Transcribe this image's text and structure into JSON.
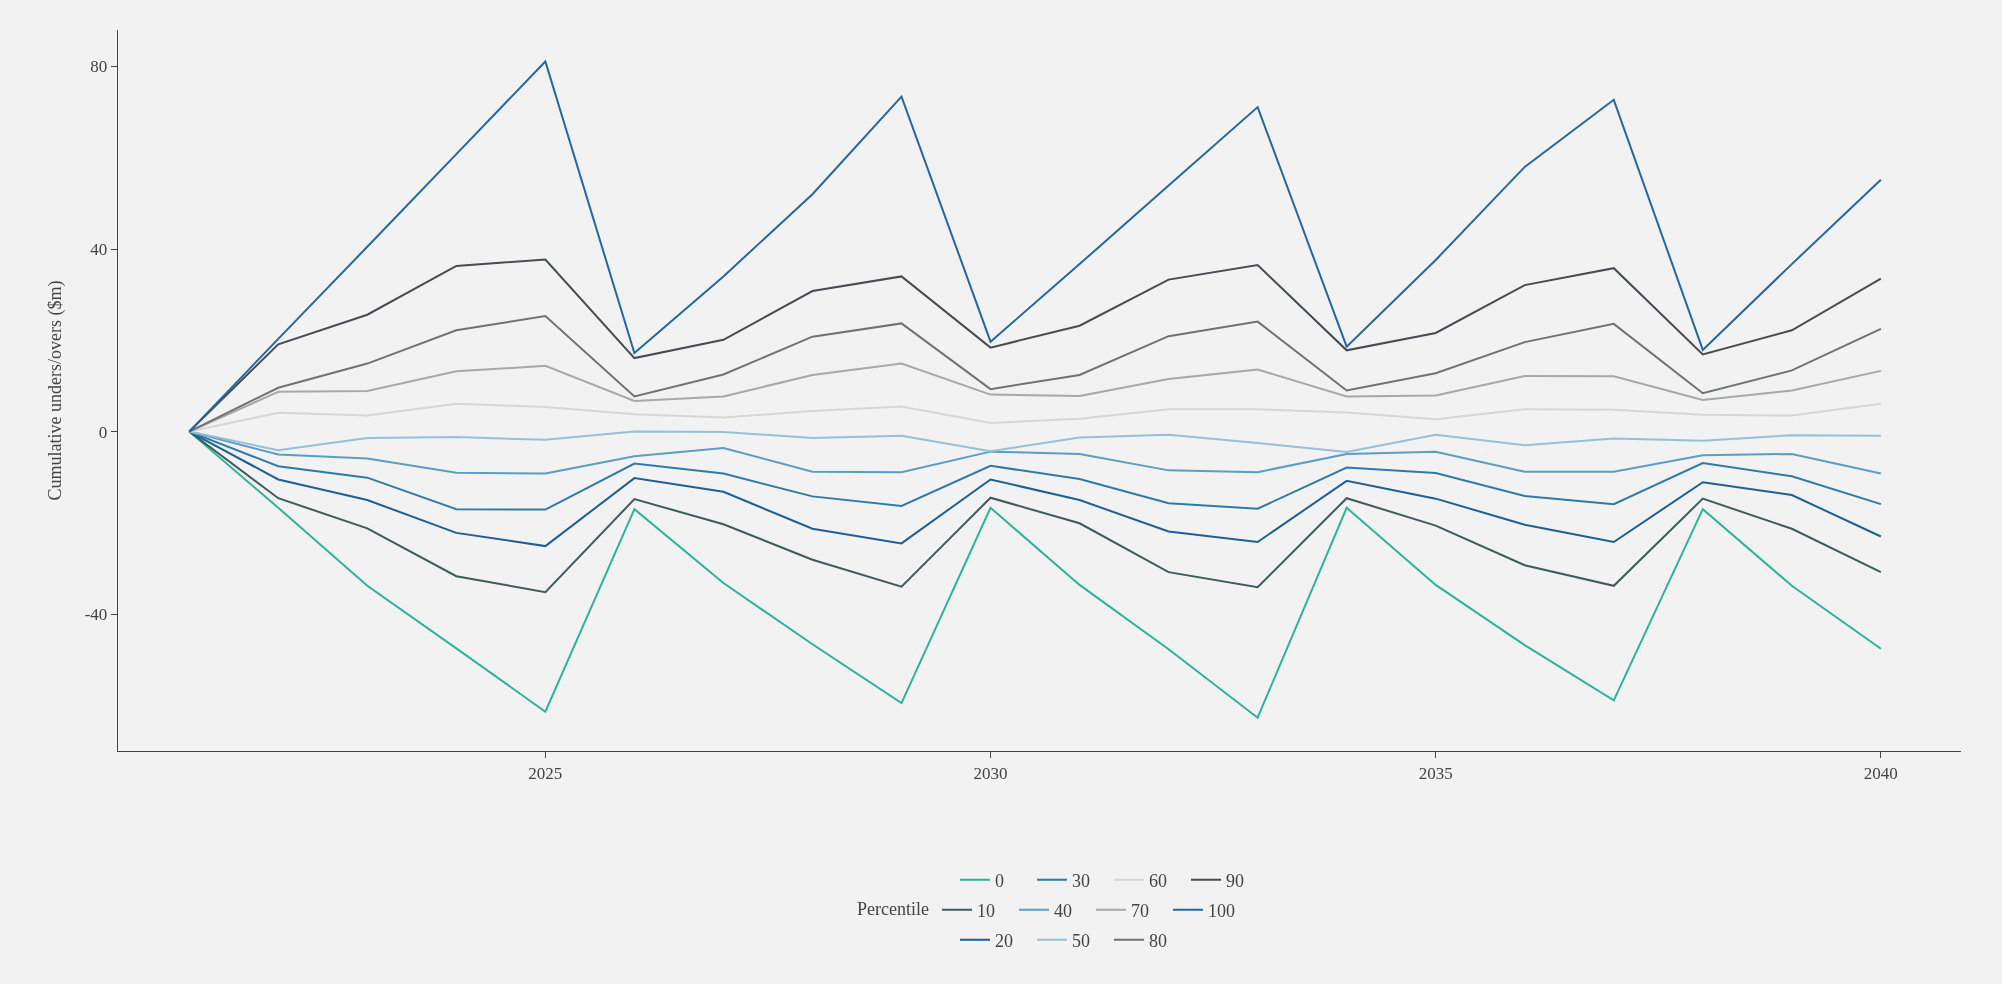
{
  "chart_data": {
    "type": "line",
    "ylabel": "Cumulative unders/overs ($m)",
    "legend_title": "Percentile",
    "legend": "bottom",
    "grid": false,
    "x": [
      2021,
      2022,
      2023,
      2024,
      2025,
      2026,
      2027,
      2028,
      2029,
      2030,
      2031,
      2032,
      2033,
      2034,
      2035,
      2036,
      2037,
      2038,
      2039,
      2040
    ],
    "xlim": [
      2020.2,
      2040.9
    ],
    "xticks": [
      2025,
      2030,
      2035,
      2040
    ],
    "ylim": [
      -70,
      88
    ],
    "yticks": [
      -40,
      0,
      40,
      80
    ],
    "series": [
      {
        "name": "0",
        "color": "#2bb39b",
        "values": [
          0,
          -16.7,
          -33.8,
          -47.5,
          -61.4,
          -17.0,
          -33.2,
          -46.6,
          -59.5,
          -16.7,
          -33.6,
          -47.7,
          -62.7,
          -16.7,
          -33.6,
          -46.8,
          -58.9,
          -17.0,
          -33.8,
          -47.6
        ]
      },
      {
        "name": "10",
        "color": "#3e5b5d",
        "values": [
          0,
          -14.6,
          -21.2,
          -31.7,
          -35.2,
          -14.8,
          -20.3,
          -28.1,
          -34.0,
          -14.5,
          -20.1,
          -30.8,
          -34.1,
          -14.6,
          -20.6,
          -29.3,
          -33.8,
          -14.7,
          -21.3,
          -30.8
        ]
      },
      {
        "name": "20",
        "color": "#1d5f96",
        "values": [
          0,
          -10.5,
          -15.0,
          -22.2,
          -25.1,
          -10.2,
          -13.2,
          -21.3,
          -24.5,
          -10.5,
          -15.0,
          -21.9,
          -24.2,
          -10.8,
          -14.7,
          -20.4,
          -24.2,
          -11.1,
          -13.9,
          -23.0
        ]
      },
      {
        "name": "30",
        "color": "#2f7aa8",
        "values": [
          0,
          -7.6,
          -10.1,
          -17.0,
          -17.1,
          -7.0,
          -9.2,
          -14.2,
          -16.3,
          -7.5,
          -10.4,
          -15.7,
          -16.9,
          -7.9,
          -9.1,
          -14.1,
          -15.9,
          -6.9,
          -9.8,
          -15.9
        ]
      },
      {
        "name": "40",
        "color": "#5a9ec3",
        "values": [
          0,
          -5.0,
          -5.9,
          -9.0,
          -9.2,
          -5.4,
          -3.6,
          -8.8,
          -8.9,
          -4.4,
          -4.9,
          -8.5,
          -8.9,
          -4.9,
          -4.4,
          -8.8,
          -8.8,
          -5.2,
          -4.9,
          -9.2
        ]
      },
      {
        "name": "50",
        "color": "#93c1d6",
        "values": [
          0,
          -4.1,
          -1.4,
          -1.2,
          -1.8,
          0,
          -0.1,
          -1.4,
          -0.9,
          -4.3,
          -1.3,
          -0.7,
          -2.5,
          -4.5,
          -0.7,
          -3.0,
          -1.5,
          -2.0,
          -0.8,
          -0.9
        ]
      },
      {
        "name": "60",
        "color": "#d6d6d6",
        "values": [
          0,
          4.1,
          3.5,
          6.1,
          5.4,
          3.8,
          3.1,
          4.5,
          5.5,
          1.9,
          2.8,
          4.9,
          4.9,
          4.2,
          2.7,
          4.9,
          4.8,
          3.7,
          3.5,
          6.1
        ]
      },
      {
        "name": "70",
        "color": "#a7a8a9",
        "values": [
          0,
          8.7,
          8.9,
          13.2,
          14.4,
          6.7,
          7.7,
          12.4,
          14.9,
          8.1,
          7.8,
          11.5,
          13.6,
          7.7,
          7.9,
          12.2,
          12.1,
          6.9,
          9.0,
          13.3
        ]
      },
      {
        "name": "80",
        "color": "#707274",
        "values": [
          0,
          9.6,
          14.9,
          22.2,
          25.3,
          7.7,
          12.5,
          20.8,
          23.7,
          9.3,
          12.4,
          20.9,
          24.1,
          9.0,
          12.8,
          19.6,
          23.6,
          8.4,
          13.4,
          22.5
        ]
      },
      {
        "name": "90",
        "color": "#474c52",
        "values": [
          0,
          19.1,
          25.6,
          36.3,
          37.7,
          16.1,
          20.1,
          30.8,
          34.0,
          18.4,
          23.2,
          33.3,
          36.5,
          17.8,
          21.6,
          32.1,
          35.8,
          16.9,
          22.2,
          33.5
        ]
      },
      {
        "name": "100",
        "color": "#2567a0",
        "values": [
          0,
          20.3,
          40.5,
          60.8,
          81.1,
          17.2,
          34.0,
          52.0,
          73.4,
          19.7,
          36.7,
          53.9,
          71.1,
          18.6,
          37.6,
          58.0,
          72.7,
          17.9,
          36.7,
          55.2
        ]
      }
    ]
  }
}
